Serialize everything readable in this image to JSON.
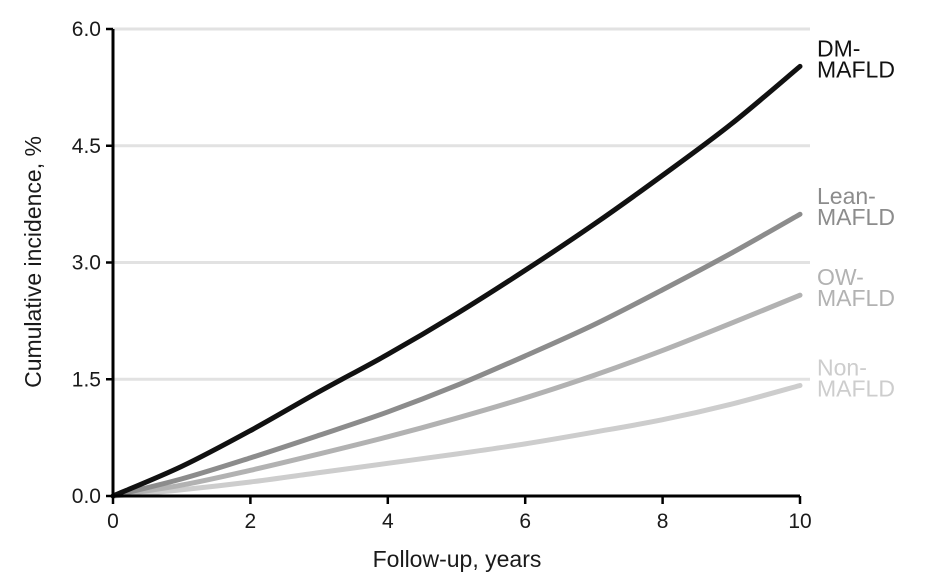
{
  "chart_data": {
    "type": "line",
    "title": "",
    "xlabel": "Follow-up, years",
    "ylabel": "Cumulative incidence, %",
    "xlim": [
      0,
      10
    ],
    "ylim": [
      0,
      6
    ],
    "xticks": [
      0,
      2,
      4,
      6,
      8,
      10
    ],
    "xtick_labels": [
      "0",
      "2",
      "4",
      "6",
      "8",
      "10"
    ],
    "yticks": [
      0,
      1.5,
      3,
      4.5,
      6
    ],
    "ytick_labels": [
      "0.0",
      "1.5",
      "3.0",
      "4.5",
      "6.0"
    ],
    "grid": "horizontal",
    "legend": "direct labels at right end of lines",
    "series": [
      {
        "label_lines": [
          "DM-",
          "MAFLD"
        ],
        "color": "#111111",
        "x": [
          0,
          1,
          2,
          3,
          4,
          5,
          6,
          7,
          8,
          9,
          10
        ],
        "y": [
          0,
          0.38,
          0.84,
          1.34,
          1.82,
          2.34,
          2.9,
          3.49,
          4.12,
          4.78,
          5.52
        ]
      },
      {
        "label_lines": [
          "Lean-",
          "MAFLD"
        ],
        "color": "#8c8c8c",
        "x": [
          0,
          1,
          2,
          3,
          4,
          5,
          6,
          7,
          8,
          9,
          10
        ],
        "y": [
          0,
          0.22,
          0.49,
          0.78,
          1.08,
          1.42,
          1.8,
          2.2,
          2.65,
          3.12,
          3.62
        ]
      },
      {
        "label_lines": [
          "OW-",
          "MAFLD"
        ],
        "color": "#b2b2b2",
        "x": [
          0,
          1,
          2,
          3,
          4,
          5,
          6,
          7,
          8,
          9,
          10
        ],
        "y": [
          0,
          0.14,
          0.33,
          0.54,
          0.76,
          1.0,
          1.26,
          1.55,
          1.87,
          2.22,
          2.58
        ]
      },
      {
        "label_lines": [
          "Non-",
          "MAFLD"
        ],
        "color": "#cdcdcd",
        "x": [
          0,
          1,
          2,
          3,
          4,
          5,
          6,
          7,
          8,
          9,
          10
        ],
        "y": [
          0,
          0.08,
          0.18,
          0.3,
          0.42,
          0.54,
          0.67,
          0.82,
          0.98,
          1.18,
          1.42
        ]
      }
    ]
  }
}
